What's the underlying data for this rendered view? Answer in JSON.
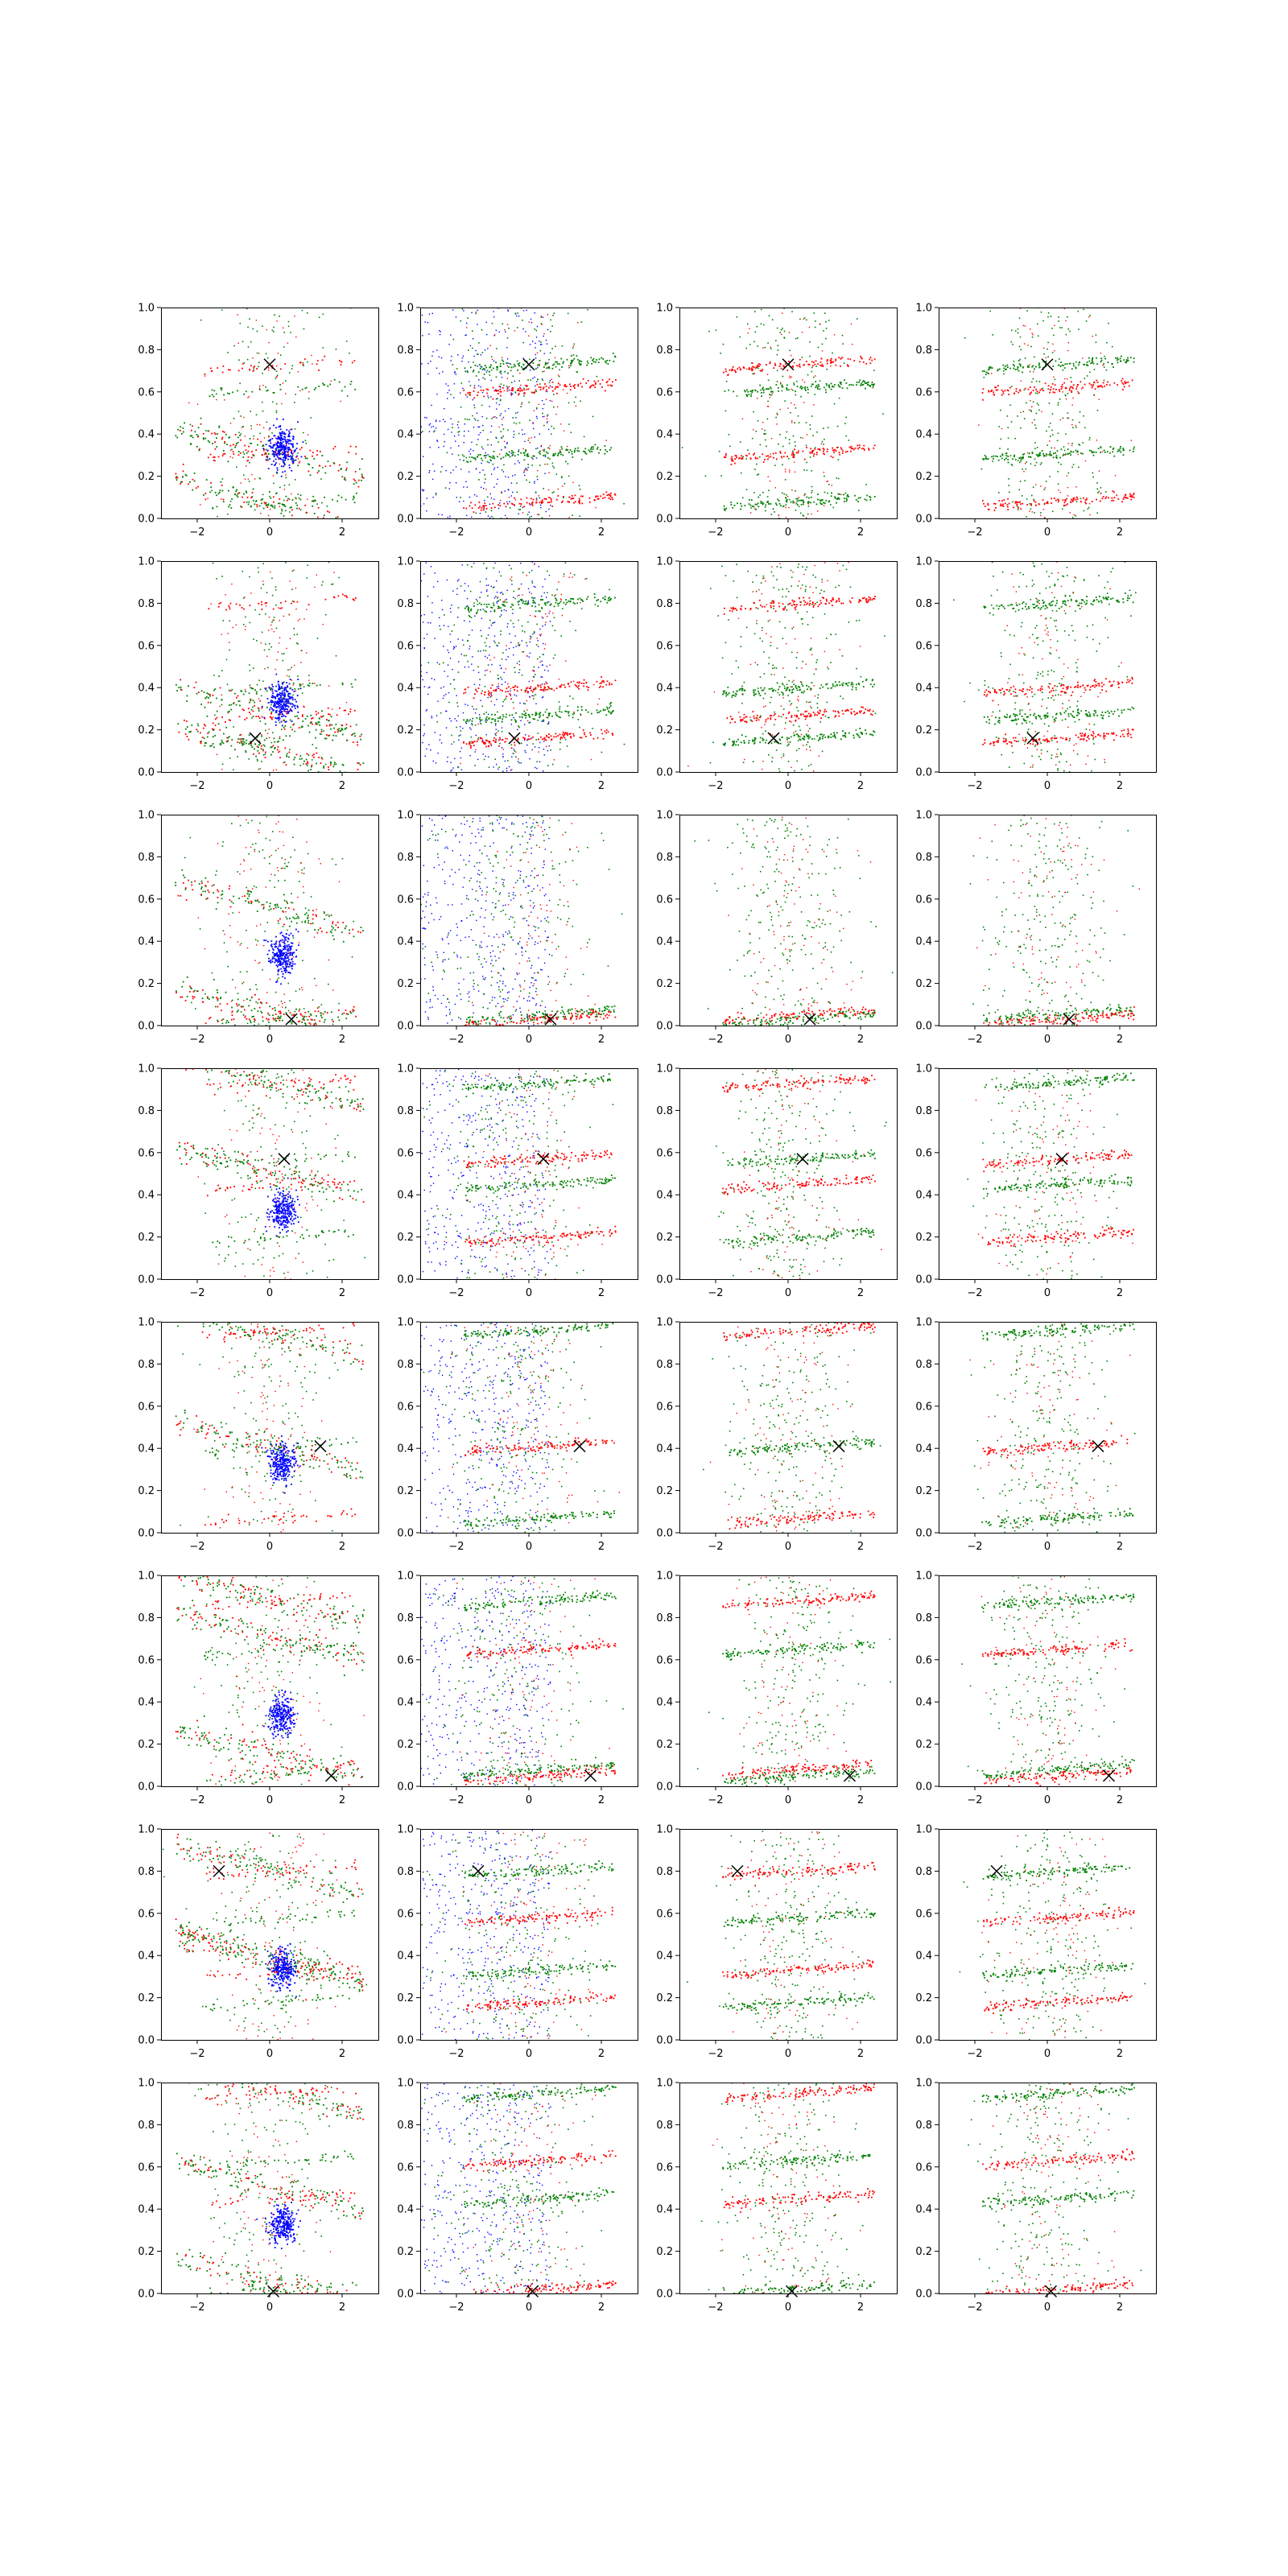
{
  "chart_data": {
    "type": "scatter",
    "grid": false,
    "layout": "8 rows x 4 columns of scatter subplots",
    "xlim": [
      -3,
      3
    ],
    "ylim": [
      0,
      1
    ],
    "xticks": [
      -2,
      0,
      2
    ],
    "yticks": [
      0.0,
      0.2,
      0.4,
      0.6,
      0.8,
      1.0
    ],
    "xtick_labels": [
      "−2",
      "0",
      "2"
    ],
    "ytick_labels": [
      "0.0",
      "0.2",
      "0.4",
      "0.6",
      "0.8",
      "1.0"
    ],
    "colors": {
      "blue": "#0000ff",
      "red": "#ff0000",
      "green": "#008000",
      "marker": "#000000"
    },
    "marker_symbol": "x",
    "series_colors_per_column": [
      [
        "blue",
        "red",
        "green"
      ],
      [
        "blue",
        "red",
        "green"
      ],
      [
        "red",
        "green"
      ],
      [
        "red",
        "green"
      ]
    ],
    "rows": [
      {
        "marker": [
          0.0,
          0.73
        ],
        "bands": [
          0.73,
          0.62,
          0.31,
          0.08
        ],
        "diag": [
          0.3,
          0.06
        ]
      },
      {
        "marker": [
          -0.4,
          0.16
        ],
        "bands": [
          0.8,
          0.4,
          0.27,
          0.16
        ],
        "diag": [
          0.28,
          0.1
        ]
      },
      {
        "marker": [
          0.6,
          0.03
        ],
        "bands": [
          0.05,
          0.03
        ],
        "diag": [
          0.55,
          0.05
        ]
      },
      {
        "marker": [
          0.4,
          0.57
        ],
        "bands": [
          0.93,
          0.57,
          0.45,
          0.2
        ],
        "diag": [
          0.93,
          0.5
        ]
      },
      {
        "marker": [
          1.4,
          0.41
        ],
        "bands": [
          0.96,
          0.41,
          0.07
        ],
        "diag": [
          0.93,
          0.4
        ]
      },
      {
        "marker": [
          1.7,
          0.05
        ],
        "bands": [
          0.88,
          0.65,
          0.08,
          0.05
        ],
        "diag": [
          0.88,
          0.7,
          0.15
        ]
      },
      {
        "marker": [
          -1.4,
          0.8
        ],
        "bands": [
          0.8,
          0.58,
          0.33,
          0.18
        ],
        "diag": [
          0.8,
          0.4,
          0.36
        ]
      },
      {
        "marker": [
          0.1,
          0.01
        ],
        "bands": [
          0.95,
          0.63,
          0.45,
          0.02
        ],
        "diag": [
          0.95,
          0.5,
          0.05
        ]
      }
    ]
  }
}
